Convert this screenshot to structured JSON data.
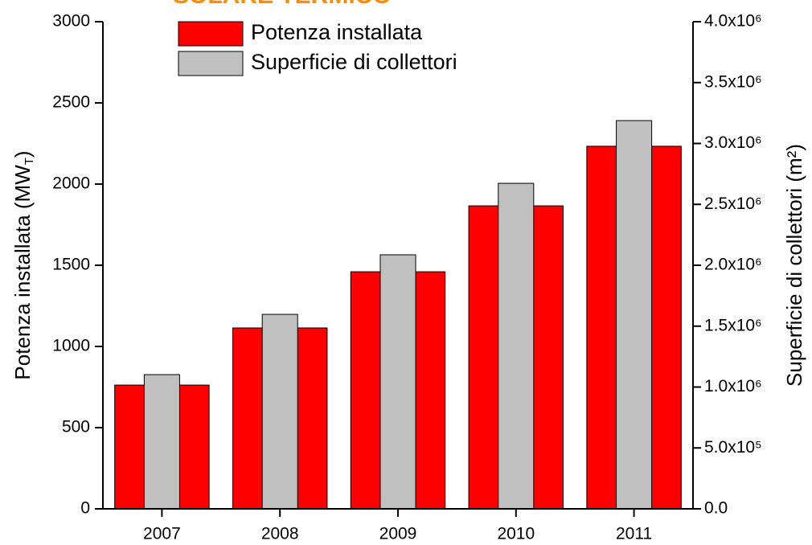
{
  "chart_data": {
    "type": "bar",
    "title": "SOLARE TERMICO",
    "categories": [
      "2007",
      "2008",
      "2009",
      "2010",
      "2011"
    ],
    "ylabel": {
      "text": "Potenza installata (MW",
      "sub": "T",
      "end": ")"
    },
    "y2label": "Superficie di collettori (m²)",
    "series": [
      {
        "name": "Potenza installata",
        "color": "#ff0000",
        "values": [
          762,
          1114,
          1460,
          1866,
          2233
        ]
      },
      {
        "name": "Superficie di collettori",
        "color": "#c0c0c0",
        "axis": "y2",
        "values": [
          1102000,
          1597000,
          2086000,
          2673000,
          3188000
        ]
      }
    ],
    "ylim": [
      0,
      3000
    ],
    "yticks": [
      0,
      500,
      1000,
      1500,
      2000,
      2500,
      3000
    ],
    "y2lim": [
      0,
      4000000
    ],
    "y2ticks": [
      {
        "value": 0,
        "label": "0.0"
      },
      {
        "value": 500000,
        "label": "5.0x10⁵"
      },
      {
        "value": 1000000,
        "label": "1.0x10⁶"
      },
      {
        "value": 1500000,
        "label": "1.5x10⁶"
      },
      {
        "value": 2000000,
        "label": "2.0x10⁶"
      },
      {
        "value": 2500000,
        "label": "2.5x10⁶"
      },
      {
        "value": 3000000,
        "label": "3.0x10⁶"
      },
      {
        "value": 3500000,
        "label": "3.5x10⁶"
      },
      {
        "value": 4000000,
        "label": "4.0x10⁶"
      }
    ],
    "legend": "upper left"
  }
}
